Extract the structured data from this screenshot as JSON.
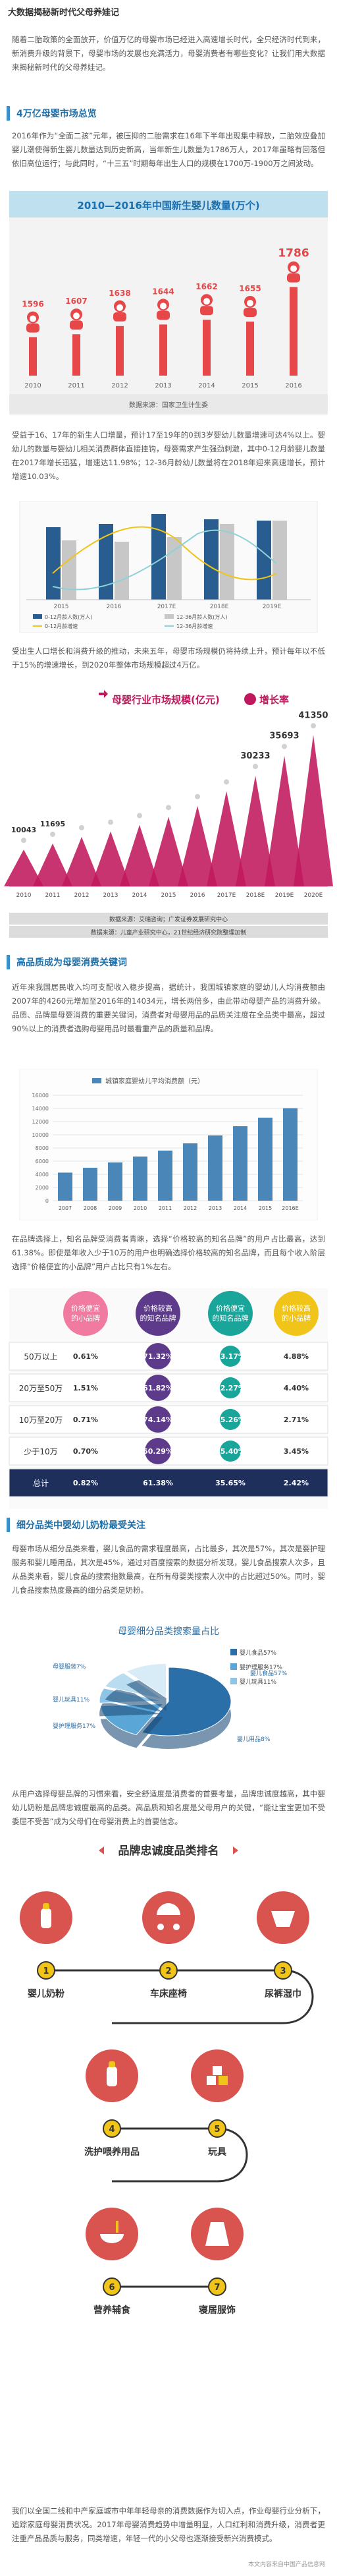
{
  "title": "大数据揭秘新时代父母养娃记",
  "intro": "随着二胎政策的全面放开，价值万亿的母婴市场已经进入高速增长时代，全只经济时代到来，新消费升级的背景下，母婴市场的发展也充满活力，母婴消费者有哪些变化？让我们用大数据来揭秘新时代的父母养娃记。",
  "sections": {
    "s1": "4万亿母婴市场总览",
    "s2": "高品质成为母婴消费关键词",
    "s3": "细分品类中婴幼儿奶粉最受关注"
  },
  "para1": "2016年作为“全面二孩”元年，被压抑的二胎需求在16年下半年出现集中释放，二胎效应叠加婴儿潮使得新生婴儿数量达到历史新高，当年新生儿数量为1786万人，2017年虽略有回落但依旧高位运行；与此同时，“十三五”时期每年出生人口的规模在1700万-1900万之间波动。",
  "chart1": {
    "title": "2010—2016年中国新生婴儿数量(万个)",
    "source": "数据来源：国家卫生计生委",
    "categories": [
      "2010",
      "2011",
      "2012",
      "2013",
      "2014",
      "2015",
      "2016"
    ],
    "values": [
      1596,
      1607,
      1638,
      1644,
      1662,
      1655,
      1786
    ],
    "colors": {
      "bar": "#e8474a",
      "baby": "#e8474a",
      "header": "#bfe0ef",
      "text": "#1a6fb0",
      "bg": "#f3f3f3"
    }
  },
  "para2": "受益于16、17年的新生人口增量，预计17至19年的0到3岁婴幼儿数量增速可达4%以上。婴幼儿的数量与婴幼儿相关消费群体直接挂钩，母婴需求产生强劲刺激，其中0-12月龄婴儿数量在2017年增长迅猛，增速达11.98%；12-36月龄幼儿数量将在2018年迎来高速增长，预计增速10.03%。",
  "chart2": {
    "legend": [
      "0-12月龄人数(万人)",
      "12-36月龄人数(万人)",
      "0-12月龄增速",
      "12-36月龄增速"
    ],
    "categories": [
      "2015",
      "2016",
      "2017E",
      "2018E",
      "2019E"
    ],
    "colors": {
      "b1": "#2a5d8f",
      "b2": "#c7c7c7",
      "l1": "#f0c419",
      "l2": "#8fd1d7"
    }
  },
  "para3": "受出生人口增长和消费升级的推动，未来五年，母婴市场规模仍将持续上升，预计每年以不低于15%的增速增长，到2020年整体市场规模超过4万亿。",
  "chart3": {
    "title": "母婴行业市场规模(亿元)",
    "legend": "增长率",
    "categories": [
      "2010",
      "2011",
      "2012",
      "2013",
      "2014",
      "2015",
      "2016",
      "2017E",
      "2018E",
      "2019E",
      "2020E"
    ],
    "values": [
      10043,
      11695,
      13500,
      15000,
      16800,
      19000,
      22000,
      26000,
      30233,
      35693,
      41350
    ],
    "labels": [
      "10043",
      "11695",
      "",
      "",
      "",
      "",
      "",
      "",
      "30233",
      "35693",
      "41350"
    ],
    "source": "数据来源：艾瑞咨询；广发证券发展研究中心",
    "source2": "数据来源：儿童产业研究中心，21世纪经济研究院整理加制",
    "colors": {
      "tri": "#c0185c",
      "dot": "#d1d1d1",
      "head": "#c0185c"
    }
  },
  "para4": "近年来我国居民收入均可支配收入稳步提高，据统计，我国城镇家庭的婴幼儿人均消费额由2007年的4260元增加至2016年的14034元，增长两倍多，由此带动母婴产品的消费升级。品质、品牌是母婴消费的重要关键词，消费者对母婴用品的品质关注度在全品类中最高，超过90%以上的消费者选购母婴用品时最看重产品的质量和品牌。",
  "chart4": {
    "legend": "城镇家庭婴幼儿平均消费额（元）",
    "categories": [
      "2007",
      "2008",
      "2009",
      "2010",
      "2011",
      "2012",
      "2013",
      "2014",
      "2015",
      "2016E"
    ],
    "values": [
      4260,
      5000,
      5800,
      6700,
      7600,
      8700,
      9900,
      11300,
      12600,
      14034
    ],
    "ymax": 16000,
    "ticks": [
      0,
      2000,
      4000,
      6000,
      8000,
      10000,
      12000,
      14000,
      16000
    ],
    "colors": {
      "bar": "#4a86b8"
    }
  },
  "para5": "在品牌选择上，知名品牌受消费者青睐，选择“价格较高的知名品牌”的用户占比最高，达到61.38%。即使是年收入少于10万的用户也明确选择价格较高的知名品牌，而且每个收入阶层选择“价格便宜的小品牌”用户占比只有1%左右。",
  "chart5": {
    "headers": [
      "价格便宜的小品牌",
      "价格较高的知名品牌",
      "价格便宜的知名品牌",
      "价格较高的小品牌"
    ],
    "rows": [
      {
        "label": "50万以上",
        "values": [
          "0.61%",
          "71.32%",
          "23.17%",
          "4.88%"
        ]
      },
      {
        "label": "20万至50万",
        "values": [
          "1.51%",
          "61.82%",
          "32.27%",
          "4.40%"
        ]
      },
      {
        "label": "10万至20万",
        "values": [
          "0.71%",
          "74.14%",
          "25.26%",
          "2.71%"
        ]
      },
      {
        "label": "少于10万",
        "values": [
          "0.70%",
          "50.29%",
          "45.40%",
          "3.45%"
        ]
      },
      {
        "label": "总计",
        "values": [
          "0.82%",
          "61.38%",
          "35.65%",
          "2.42%"
        ]
      }
    ],
    "colors": {
      "pink": "#f07aa0",
      "purple": "#5d3a8a",
      "teal": "#1aa59b",
      "yellow": "#f0c419",
      "navy": "#1e2f5c"
    }
  },
  "para6": "母婴市场从细分品类来看，婴儿食品的需求程度最高，占比最多，其次是57%，其次是婴护理服务和婴儿睡用品，其次是45%，通过对百度搜索的数据分析发现，婴儿食品搜索人次多，且从品类来看，婴儿食品的搜索指数最高，在所有母婴类搜索人次中的占比超过50%。同时，婴儿食品搜索热度最高的细分品类是奶粉。",
  "chart6": {
    "title": "母婴细分品类搜索量占比",
    "slices": [
      {
        "label": "婴儿食品57%",
        "value": 57,
        "color": "#2b6fa8"
      },
      {
        "label": "婴护理服务17%",
        "value": 17,
        "color": "#5aa6d6"
      },
      {
        "label": "母婴服装7%",
        "value": 7,
        "color": "#8ec5e6"
      },
      {
        "label": "婴儿用品8%",
        "value": 8,
        "color": "#b9dcf0"
      },
      {
        "label": "婴儿玩具11%",
        "value": 11,
        "color": "#d8ecf7"
      }
    ],
    "outer_labels": [
      "母婴服装7%",
      "婴儿玩具11%",
      "婴护理服务17%",
      "婴儿用品8%",
      "婴儿食品57%"
    ]
  },
  "para7": "从用户选择母婴品牌的习惯来看，安全舒适度是消费者的首要考量，品牌忠诚度越高，其中婴幼儿奶粉是品牌忠诚度最高的品类。高品质和知名度是父母用户的关键，“能让宝宝更加不受委屈不受苦”成为父母们在母婴消费上的首要信念。",
  "chart7": {
    "title": "品牌忠诚度品类排名",
    "items": [
      {
        "rank": "1",
        "label": "婴儿奶粉"
      },
      {
        "rank": "2",
        "label": "车床座椅"
      },
      {
        "rank": "3",
        "label": "尿裤湿巾"
      },
      {
        "rank": "4",
        "label": "洗护喂养用品"
      },
      {
        "rank": "5",
        "label": "玩具"
      },
      {
        "rank": "6",
        "label": "营养辅食"
      },
      {
        "rank": "7",
        "label": "寝居服饰"
      }
    ],
    "colors": {
      "red": "#d9534f",
      "yellow": "#f0c419",
      "dark": "#333333"
    }
  },
  "para8": "我们以全国二线和中产家庭城市中年年轻母亲的消费数据作为切入点，作业母婴行业分析下，追踪家庭母婴消费状况。2017年母婴消费趋势中增量明显，人口红利和消费升级，消费者更注重产品品质与服务，同类增速，年轻一代的小父母也逐渐接受新兴消费模式。",
  "footer": "本文内容来自中国产品信息网"
}
